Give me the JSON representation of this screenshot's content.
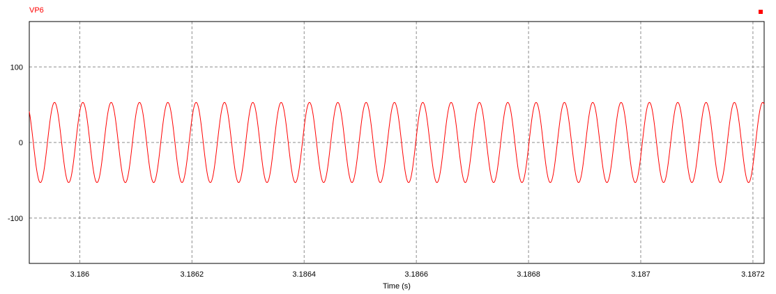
{
  "chart_data": {
    "type": "line",
    "title": "",
    "xlabel": "Time (s)",
    "ylabel": "",
    "xlim": [
      3.18591,
      3.18722
    ],
    "ylim": [
      -160,
      160
    ],
    "x_ticks": [
      3.186,
      3.1862,
      3.1864,
      3.1866,
      3.1868,
      3.187,
      3.1872
    ],
    "x_tick_labels": [
      "3.186",
      "3.1862",
      "3.1864",
      "3.1866",
      "3.1868",
      "3.187",
      "3.1872"
    ],
    "y_ticks": [
      100,
      0,
      -100
    ],
    "y_tick_labels": [
      "100",
      "0",
      "-100"
    ],
    "grid": true,
    "series": [
      {
        "name": "VP6",
        "color": "#ff0000",
        "waveform": "sine",
        "amplitude": 53,
        "period": 5.05e-05,
        "first_peak_x": 3.185955,
        "x_start": 3.18591,
        "x_end": 3.18722
      }
    ],
    "legend_position": "top-left"
  },
  "colors": {
    "series": "#ff0000",
    "grid": "#8c8c8c",
    "axis": "#000000",
    "background": "#ffffff"
  }
}
